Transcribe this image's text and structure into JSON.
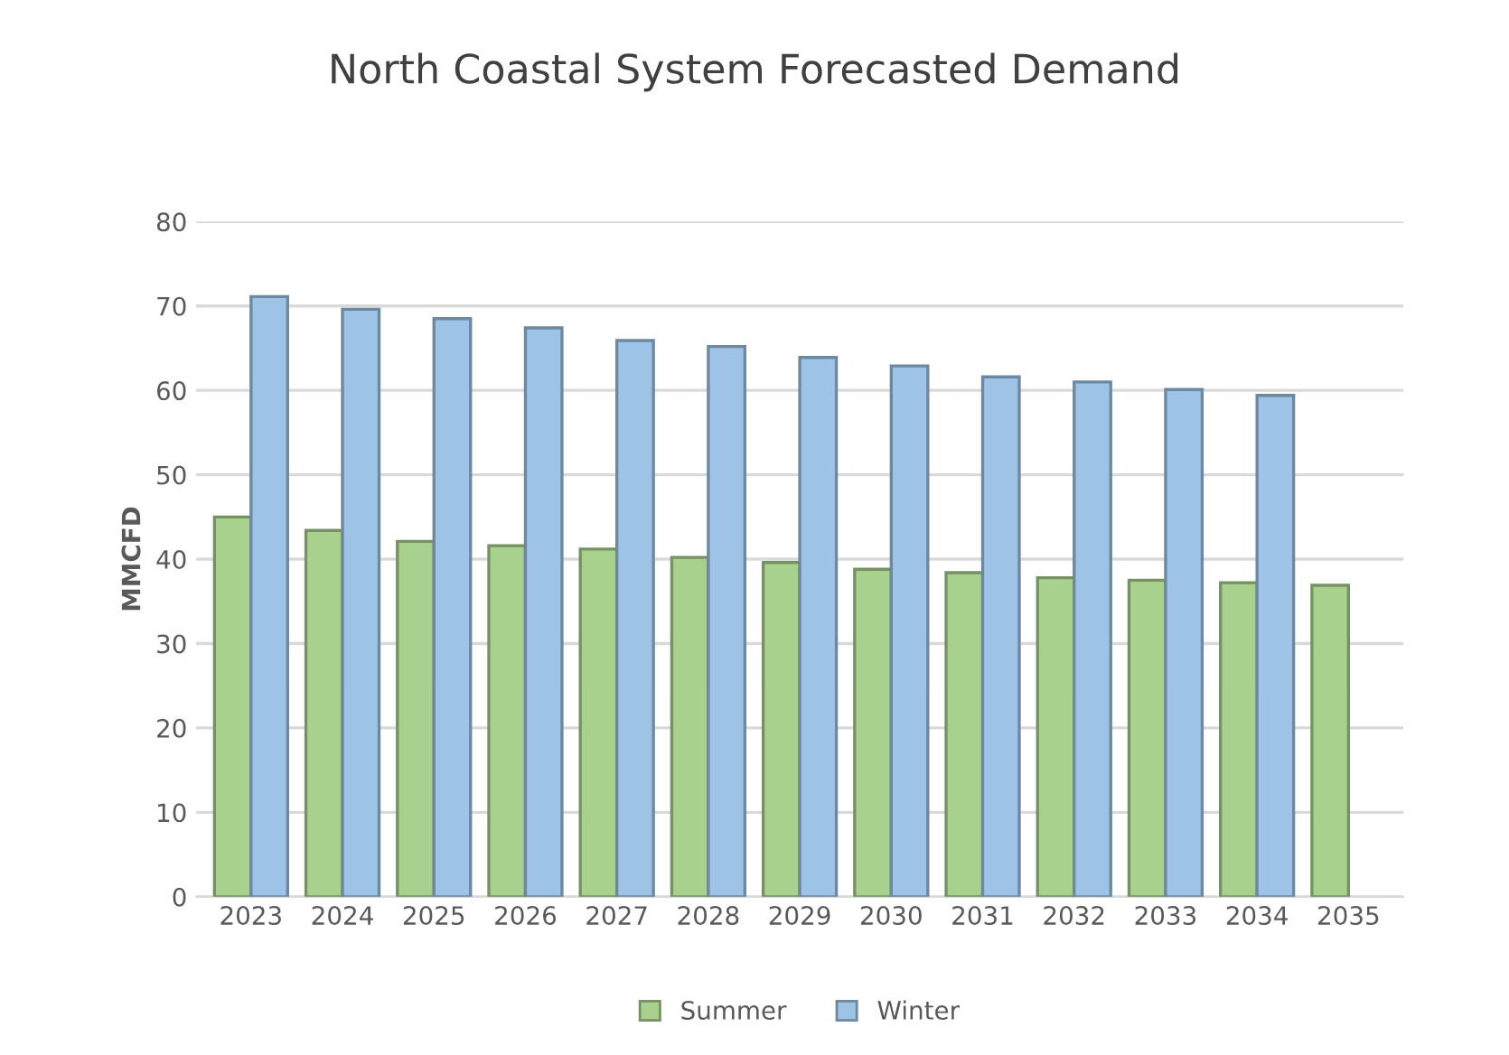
{
  "chart_data": {
    "type": "bar",
    "title": "North Coastal System Forecasted Demand",
    "ylabel": "MMCFD",
    "categories": [
      "2023",
      "2024",
      "2025",
      "2026",
      "2027",
      "2028",
      "2029",
      "2030",
      "2031",
      "2032",
      "2033",
      "2034",
      "2035"
    ],
    "series": [
      {
        "name": "Summer",
        "color": "#a9d18e",
        "values": [
          45.0,
          43.4,
          42.1,
          41.6,
          41.2,
          40.2,
          39.6,
          38.8,
          38.4,
          37.8,
          37.5,
          37.2,
          36.9
        ]
      },
      {
        "name": "Winter",
        "color": "#9dc3e6",
        "values": [
          71.1,
          69.6,
          68.5,
          67.4,
          65.9,
          65.2,
          63.9,
          62.9,
          61.6,
          61.0,
          60.1,
          59.4,
          null
        ]
      }
    ],
    "ylim": [
      0,
      80
    ],
    "yticks": [
      0,
      10,
      20,
      30,
      40,
      50,
      60,
      70,
      80
    ],
    "grid": "y",
    "legend": "bottom"
  }
}
